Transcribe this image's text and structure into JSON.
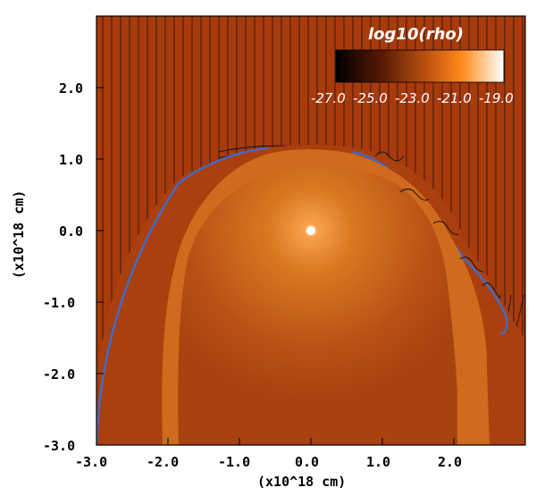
{
  "plot": {
    "colorbar_title": "log10(rho)",
    "colorbar_ticks": [
      "-27.0",
      "-25.0",
      "-23.0",
      "-21.0",
      "-19.0"
    ],
    "x_axis_label": "(x10^18 cm)",
    "y_axis_label": "(x10^18 cm)",
    "x_ticks": [
      "-3.0",
      "-2.0",
      "-1.0",
      "0.0",
      "1.0",
      "2.0"
    ],
    "y_ticks": [
      "2.0",
      "1.0",
      "0.0",
      "-1.0",
      "-2.0",
      "-3.0"
    ],
    "colors": {
      "ambient": "#a83a0c",
      "shell": "#d06a1c",
      "bubble": "#b8541a",
      "core": "#ffffff",
      "field_lines": "#111111",
      "shear_layer": "#3a6fd8",
      "colormap": [
        "#000000",
        "#5a1a05",
        "#b5480e",
        "#ff8a1a",
        "#ffffff"
      ]
    }
  }
}
